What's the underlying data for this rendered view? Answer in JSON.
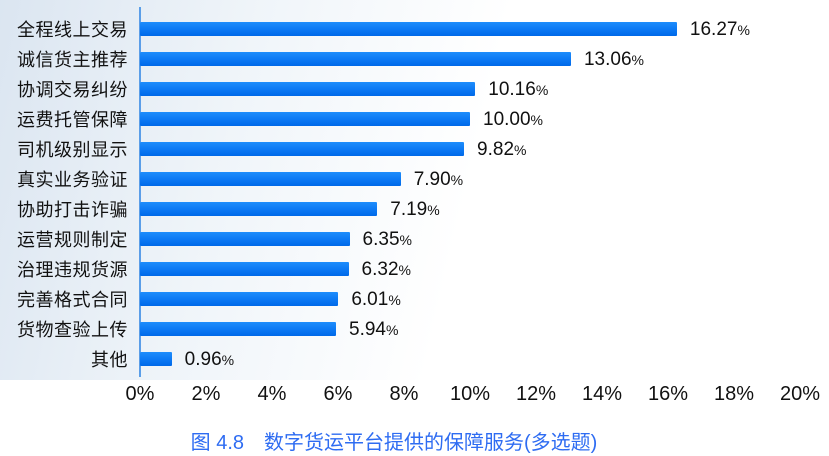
{
  "chart_data": {
    "type": "bar",
    "orientation": "horizontal",
    "categories": [
      "全程线上交易",
      "诚信货主推荐",
      "协调交易纠纷",
      "运费托管保障",
      "司机级别显示",
      "真实业务验证",
      "协助打击诈骗",
      "运营规则制定",
      "治理违规货源",
      "完善格式合同",
      "货物查验上传",
      "其他"
    ],
    "values": [
      16.27,
      13.06,
      10.16,
      10.0,
      9.82,
      7.9,
      7.19,
      6.35,
      6.32,
      6.01,
      5.94,
      0.96
    ],
    "value_labels": [
      "16.27",
      "13.06",
      "10.16",
      "10.00",
      "9.82",
      "7.90",
      "7.19",
      "6.35",
      "6.32",
      "6.01",
      "5.94",
      "0.96"
    ],
    "value_suffix": "%",
    "title": "图 4.8　数字货运平台提供的保障服务(多选题)",
    "xlabel": "",
    "ylabel": "",
    "xlim": [
      0,
      20
    ],
    "x_ticks": [
      "0%",
      "2%",
      "4%",
      "6%",
      "8%",
      "10%",
      "12%",
      "14%",
      "16%",
      "18%",
      "20%"
    ],
    "grid": false,
    "legend": null,
    "bar_labels_position": "right-of-bar"
  },
  "colors": {
    "bar": "#0b78f4",
    "bar_gradient_top": "#1e8dfc",
    "bar_gradient_bottom": "#0069e8",
    "axis_line": "#5b9ee8",
    "caption_text": "#2e6cf2",
    "text": "#111111",
    "background_tint": "#d9e4f0"
  }
}
